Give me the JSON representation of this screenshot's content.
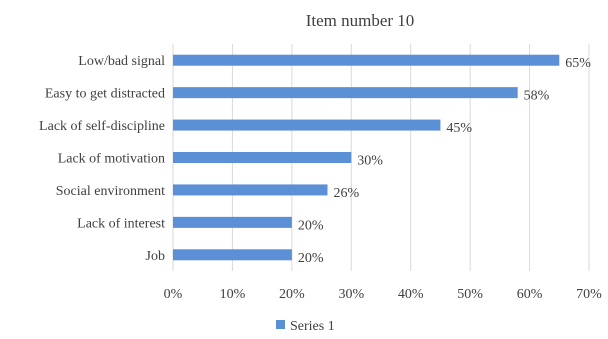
{
  "chart_data": {
    "type": "bar",
    "orientation": "horizontal",
    "title": "Item number 10",
    "categories": [
      "Low/bad signal",
      "Easy to get distracted",
      "Lack of self-discipline",
      "Lack of motivation",
      "Social environment",
      "Lack of  interest",
      "Job"
    ],
    "series": [
      {
        "name": "Series 1",
        "values": [
          65,
          58,
          45,
          30,
          26,
          20,
          20
        ],
        "data_labels": [
          "65%",
          "58%",
          "45%",
          "30%",
          "26%",
          "20%",
          "20%"
        ],
        "color": "#5b8fd6"
      }
    ],
    "xlim": [
      0,
      70
    ],
    "x_ticks": [
      0,
      10,
      20,
      30,
      40,
      50,
      60,
      70
    ],
    "x_tick_labels": [
      "0%",
      "10%",
      "20%",
      "30%",
      "40%",
      "50%",
      "60%",
      "70%"
    ],
    "grid": true,
    "legend_position": "bottom"
  }
}
